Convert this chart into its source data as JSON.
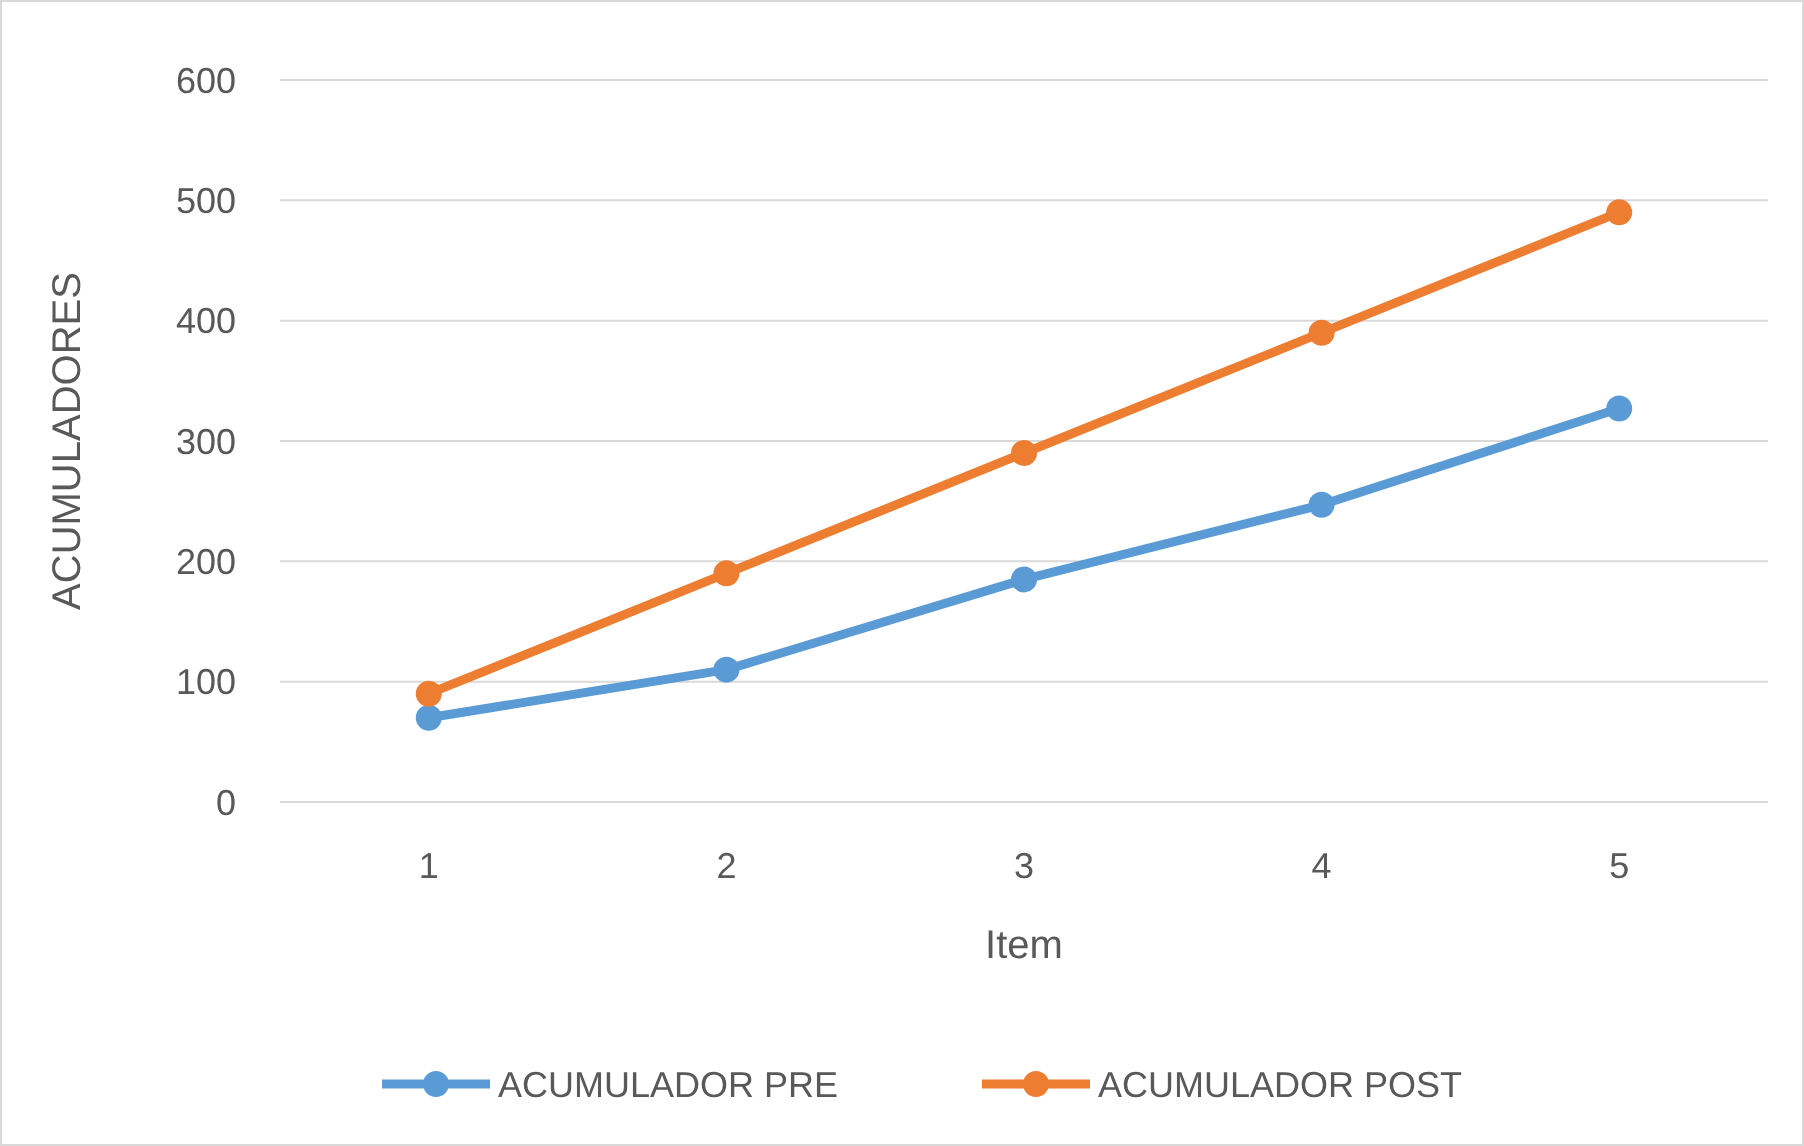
{
  "chart_data": {
    "type": "line",
    "xlabel": "Item",
    "ylabel": "ACUMULADORES",
    "categories": [
      "1",
      "2",
      "3",
      "4",
      "5"
    ],
    "series": [
      {
        "name": "ACUMULADOR PRE",
        "color": "#5b9bd5",
        "values": [
          70,
          110,
          185,
          247,
          327
        ]
      },
      {
        "name": "ACUMULADOR POST",
        "color": "#ed7d31",
        "values": [
          90,
          190,
          290,
          390,
          490
        ]
      }
    ],
    "ylim": [
      0,
      600
    ],
    "yticks": [
      0,
      100,
      200,
      300,
      400,
      500,
      600
    ],
    "grid": "y",
    "legend": "bottom",
    "marker": "circle",
    "line_style": "solid"
  }
}
